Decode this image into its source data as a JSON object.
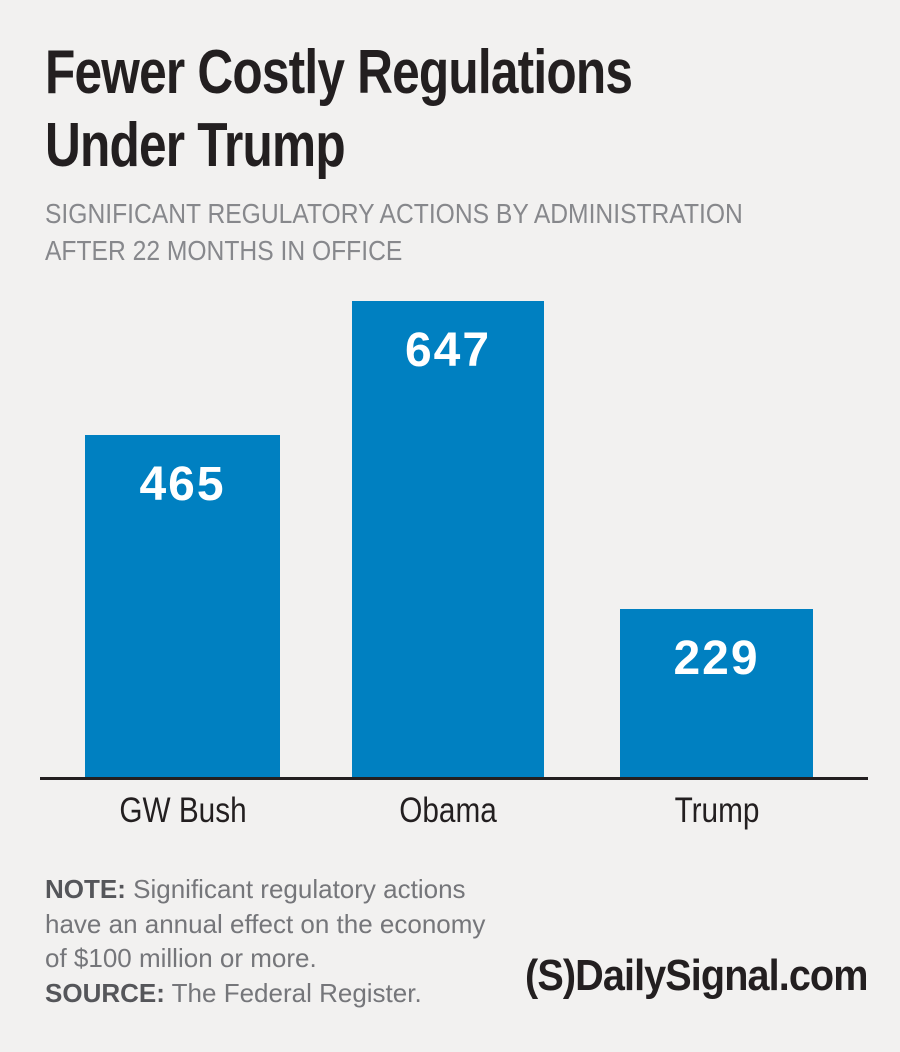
{
  "page": {
    "background_color": "#f2f1f0"
  },
  "header": {
    "title_line1": "Fewer Costly Regulations",
    "title_line2": "Under Trump",
    "subtitle_line1": "SIGNIFICANT REGULATORY ACTIONS BY ADMINISTRATION",
    "subtitle_line2": "AFTER 22 MONTHS IN OFFICE"
  },
  "chart_data": {
    "type": "bar",
    "title": "Fewer Costly Regulations Under Trump",
    "subtitle": "Significant regulatory actions by administration after 22 months in office",
    "categories": [
      "GW Bush",
      "Obama",
      "Trump"
    ],
    "values": [
      465,
      647,
      229
    ],
    "xlabel": "",
    "ylabel": "",
    "ylim": [
      0,
      660
    ],
    "grid": false,
    "legend": false,
    "value_labels": "inside-top, white, bold",
    "bar_color": "#0080c1",
    "value_label_color": "#ffffff",
    "axis_line_color": "#231f20"
  },
  "footer": {
    "note_label": "NOTE:",
    "note_line1": "Significant regulatory actions",
    "note_line2": "have an annual effect on the economy",
    "note_line3": "of $100 million or more.",
    "source_label": "SOURCE:",
    "source_text": "The Federal Register.",
    "logo_text": "(S)DailySignal.com"
  },
  "colors": {
    "title": "#231f20",
    "subtitle": "#87888c",
    "note_body": "#75767a",
    "note_label": "#55565a",
    "bar": "#0080c1",
    "background": "#f2f1f0"
  }
}
